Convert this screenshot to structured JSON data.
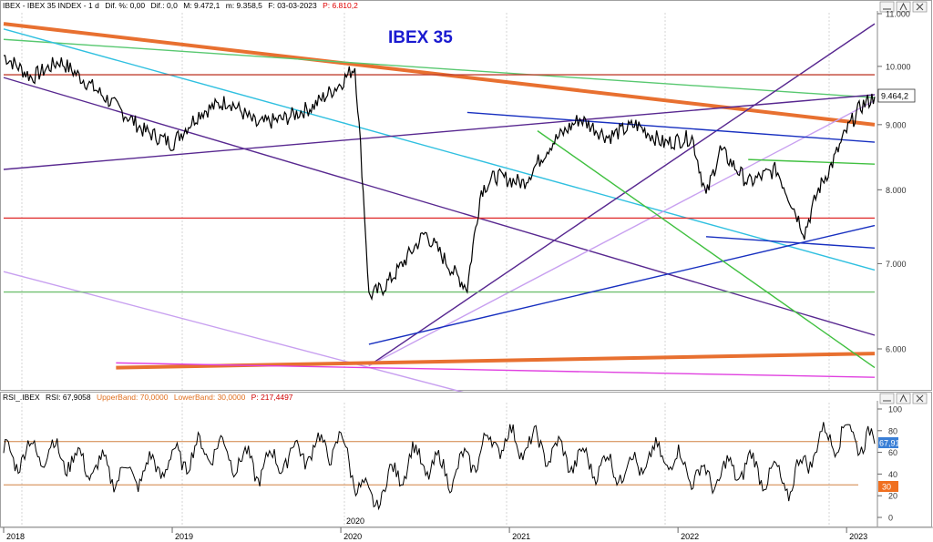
{
  "main_panel": {
    "header": {
      "symbol": "IBEX - IBEX 35 INDEX - 1 d",
      "dif_pct": "Dif. %: 0,00",
      "dif": "Dif.: 0,0",
      "max": "M: 9.472,1",
      "min": "m: 9.358,5",
      "date": "F: 03-03-2023",
      "price": "P: 6.810,2",
      "price_color": "#e00000"
    },
    "title": "IBEX 35",
    "title_color": "#1a1ad0",
    "last_value_label": "9.464,2",
    "y_ticks": [
      "11.000",
      "10.000",
      "9.000",
      "8.000",
      "7.000",
      "6.000"
    ]
  },
  "rsi_panel": {
    "header": {
      "name": "RSI_.IBEX",
      "rsi": "RSI: 67,9058",
      "upper": "UpperBand: 70,0000",
      "lower": "LowerBand: 30,0000",
      "p": "P: 217,4497"
    },
    "y_ticks": [
      "100",
      "80",
      "60",
      "40",
      "20",
      "0"
    ],
    "value_label": "67,91",
    "lower_label": "30",
    "value_color": "#3a7fd6",
    "lower_color": "#f07020"
  },
  "x_axis": {
    "labels": [
      "2018",
      "2019",
      "2020",
      "2021",
      "2022",
      "2023"
    ],
    "mid_label": "2020"
  },
  "chart_data": [
    {
      "type": "line",
      "title": "IBEX 35",
      "x_range": [
        "2018-01",
        "2023-03"
      ],
      "ylim": [
        5500,
        11000
      ],
      "y_scale": "log",
      "series": [
        {
          "name": "IBEX 35",
          "color": "#000000",
          "x": [
            "2018-01",
            "2018-03",
            "2018-05",
            "2018-07",
            "2018-09",
            "2018-11",
            "2019-01",
            "2019-03",
            "2019-05",
            "2019-07",
            "2019-09",
            "2019-11",
            "2020-01",
            "2020-02",
            "2020-03",
            "2020-04",
            "2020-05",
            "2020-07",
            "2020-09",
            "2020-10",
            "2020-11",
            "2020-12",
            "2021-02",
            "2021-04",
            "2021-06",
            "2021-08",
            "2021-10",
            "2021-12",
            "2022-02",
            "2022-03",
            "2022-04",
            "2022-06",
            "2022-08",
            "2022-10",
            "2022-11",
            "2022-12",
            "2023-01",
            "2023-02",
            "2023-03"
          ],
          "values": [
            10200,
            9800,
            10100,
            9700,
            9300,
            8900,
            8700,
            9200,
            9400,
            9000,
            9100,
            9300,
            9700,
            10000,
            6600,
            6700,
            6900,
            7400,
            6900,
            6700,
            8000,
            8200,
            8100,
            8700,
            9100,
            8800,
            9000,
            8700,
            8800,
            7900,
            8600,
            8100,
            8300,
            7400,
            8000,
            8400,
            8900,
            9300,
            9464
          ]
        }
      ],
      "trendlines": [
        {
          "color": "#e87030",
          "width": "thick",
          "from": [
            "2018-01",
            10800
          ],
          "to": [
            "2023-03",
            9000
          ]
        },
        {
          "color": "#58c870",
          "from": [
            "2018-01",
            10500
          ],
          "to": [
            "2023-03",
            9450
          ]
        },
        {
          "color": "#30c0e0",
          "from": [
            "2018-01",
            10700
          ],
          "to": [
            "2023-03",
            6920
          ]
        },
        {
          "color": "#582890",
          "from": [
            "2018-01",
            9800
          ],
          "to": [
            "2023-03",
            6150
          ]
        },
        {
          "color": "#582890",
          "from": [
            "2018-01",
            8300
          ],
          "to": [
            "2023-03",
            9500
          ]
        },
        {
          "color": "#582890",
          "from": [
            "2020-03",
            5820
          ],
          "to": [
            "2023-03",
            10800
          ]
        },
        {
          "color": "#c8a0f0",
          "from": [
            "2020-03",
            5820
          ],
          "to": [
            "2023-03",
            9400
          ]
        },
        {
          "color": "#c8a0f0",
          "from": [
            "2018-01",
            6900
          ],
          "to": [
            "2020-11",
            5500
          ]
        },
        {
          "color": "#e03030",
          "horizontal": 7600
        },
        {
          "color": "#c04030",
          "horizontal": 9850
        },
        {
          "color": "#70c070",
          "horizontal": 6650
        },
        {
          "color": "#1830c0",
          "from": [
            "2020-03",
            6050
          ],
          "to": [
            "2023-03",
            7500
          ]
        },
        {
          "color": "#1830c0",
          "from": [
            "2020-10",
            9200
          ],
          "to": [
            "2023-03",
            8720
          ]
        },
        {
          "color": "#1830c0",
          "from": [
            "2022-03",
            7350
          ],
          "to": [
            "2023-03",
            7200
          ]
        },
        {
          "color": "#e87030",
          "width": "thick",
          "horizontal_from": [
            "2018-09",
            5800
          ],
          "to": [
            "2023-03",
            5950
          ]
        },
        {
          "color": "#e040e0",
          "from": [
            "2018-09",
            5850
          ],
          "to": [
            "2023-03",
            5700
          ]
        },
        {
          "color": "#40c040",
          "from": [
            "2021-03",
            8900
          ],
          "to": [
            "2023-03",
            5800
          ]
        },
        {
          "color": "#40c040",
          "from": [
            "2022-06",
            8450
          ],
          "to": [
            "2023-03",
            8380
          ]
        }
      ]
    },
    {
      "type": "line",
      "title": "RSI_.IBEX",
      "ylim": [
        0,
        100
      ],
      "bands": {
        "upper": 70,
        "lower": 30
      },
      "series": [
        {
          "name": "RSI",
          "color": "#000000",
          "x": [
            "2018-01",
            "2018-04",
            "2018-07",
            "2018-10",
            "2019-01",
            "2019-04",
            "2019-07",
            "2019-10",
            "2020-01",
            "2020-03",
            "2020-06",
            "2020-09",
            "2020-12",
            "2021-03",
            "2021-06",
            "2021-09",
            "2021-12",
            "2022-03",
            "2022-06",
            "2022-09",
            "2022-11",
            "2023-01",
            "2023-03"
          ],
          "values": [
            55,
            62,
            48,
            38,
            52,
            65,
            45,
            60,
            68,
            12,
            55,
            40,
            72,
            66,
            52,
            44,
            58,
            35,
            48,
            30,
            70,
            78,
            67.9
          ]
        }
      ]
    }
  ]
}
